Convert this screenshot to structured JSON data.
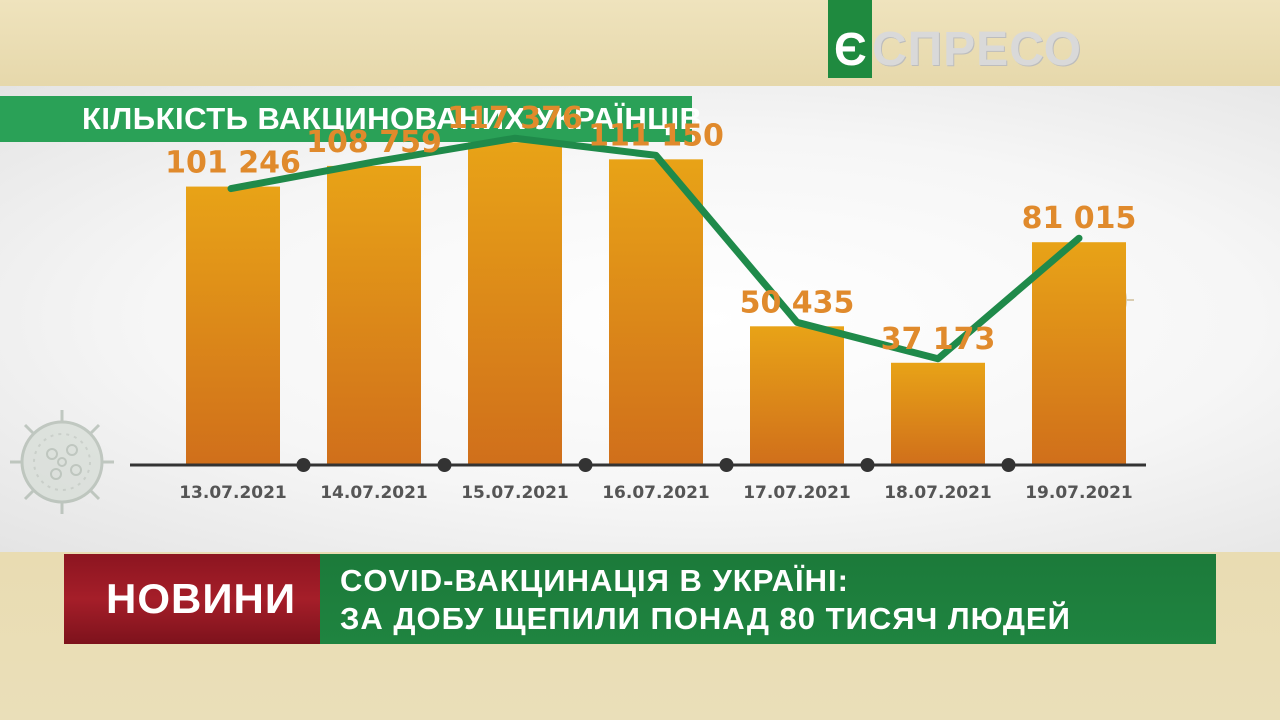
{
  "logo": {
    "letter": "Є",
    "text": "СПРЕСО"
  },
  "title": "КІЛЬКІСТЬ ВАКЦИНОВАНИХ УКРАЇНЦІВ",
  "colors": {
    "bar_top": "#e8a317",
    "bar_bottom": "#d06f1b",
    "line": "#1f8a4a",
    "value_label": "#e08a2c",
    "axis": "#333333",
    "title_bg": "#2aa157",
    "news_label_bg": "#a51e29",
    "headline_bg": "#1f8440"
  },
  "chart_data": {
    "type": "bar",
    "title": "КІЛЬКІСТЬ ВАКЦИНОВАНИХ УКРАЇНЦІВ",
    "categories": [
      "13.07.2021",
      "14.07.2021",
      "15.07.2021",
      "16.07.2021",
      "17.07.2021",
      "18.07.2021",
      "19.07.2021"
    ],
    "values": [
      101246,
      108759,
      117376,
      111150,
      50435,
      37173,
      81015
    ],
    "value_labels": [
      "101 246",
      "108 759",
      "117 376",
      "111 150",
      "50 435",
      "37 173",
      "81 015"
    ],
    "overlay_line": true,
    "ylim": [
      0,
      120000
    ],
    "grid": false,
    "legend": "none"
  },
  "news": {
    "label": "НОВИНИ",
    "headline_line1": "COVID-ВАКЦИНАЦІЯ В УКРАЇНІ:",
    "headline_line2": "ЗА ДОБУ ЩЕПИЛИ ПОНАД 80 ТИСЯЧ ЛЮДЕЙ"
  }
}
